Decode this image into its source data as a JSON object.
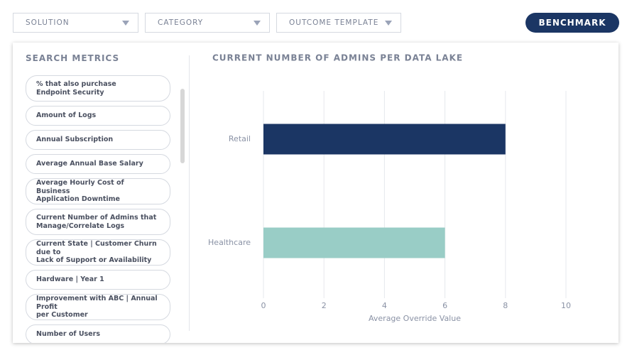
{
  "toolbar": {
    "filters": [
      "SOLUTION",
      "CATEGORY",
      "OUTCOME TEMPLATE"
    ],
    "button": "BENCHMARK"
  },
  "sidebar": {
    "title": "SEARCH METRICS",
    "items": [
      [
        "% that also purchase",
        "Endpoint Security"
      ],
      [
        "Amount of Logs"
      ],
      [
        "Annual Subscription"
      ],
      [
        "Average Annual Base Salary"
      ],
      [
        "Average Hourly Cost of Business",
        "Application Downtime"
      ],
      [
        "Current Number of Admins that",
        "Manage/Correlate Logs"
      ],
      [
        "Current State | Customer Churn due to",
        "Lack of Support or Availability"
      ],
      [
        "Hardware | Year 1"
      ],
      [
        "Improvement with ABC | Annual Profit",
        "per Customer"
      ],
      [
        "Number of Users"
      ]
    ]
  },
  "chart_data": {
    "type": "bar",
    "orientation": "horizontal",
    "title": "CURRENT NUMBER OF ADMINS PER DATA LAKE",
    "categories": [
      "Retail",
      "Healthcare"
    ],
    "values": [
      8,
      6
    ],
    "colors": [
      "#1b3664",
      "#99cdc6"
    ],
    "xlabel": "Average Override Value",
    "xlim": [
      0,
      10
    ],
    "xticks": [
      0,
      2,
      4,
      6,
      8,
      10
    ],
    "grid": true
  }
}
